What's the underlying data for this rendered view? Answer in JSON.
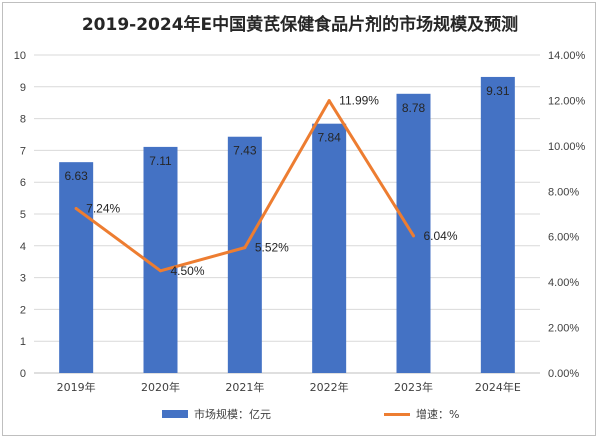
{
  "title": "2019-2024年E中国黄芪保健食品片剂的市场规模及预测",
  "colors": {
    "bar": "#4472C4",
    "line": "#ED7D31",
    "grid": "#d9d9d9",
    "axis": "#bfbfbf"
  },
  "legend": {
    "bar_label": "市场规模：亿元",
    "line_label": "增速：%"
  },
  "chart_data": {
    "type": "bar",
    "categories": [
      "2019年",
      "2020年",
      "2021年",
      "2022年",
      "2023年",
      "2024年E"
    ],
    "series": [
      {
        "name": "市场规模：亿元",
        "type": "bar",
        "axis": "left",
        "values": [
          6.63,
          7.11,
          7.43,
          7.84,
          8.78,
          9.31
        ],
        "labels": [
          "6.63",
          "7.11",
          "7.43",
          "7.84",
          "8.78",
          "9.31"
        ]
      },
      {
        "name": "增速：%",
        "type": "line",
        "axis": "right",
        "values": [
          7.24,
          4.5,
          5.52,
          11.99,
          6.04,
          null
        ],
        "labels": [
          "7.24%",
          "4.50%",
          "5.52%",
          "11.99%",
          "6.04%",
          null
        ]
      }
    ],
    "y_left": {
      "min": 0,
      "max": 10,
      "ticks": [
        "0",
        "1",
        "2",
        "3",
        "4",
        "5",
        "6",
        "7",
        "8",
        "9",
        "10"
      ]
    },
    "y_right": {
      "min": 0,
      "max": 14,
      "ticks": [
        "0.00%",
        "2.00%",
        "4.00%",
        "6.00%",
        "8.00%",
        "10.00%",
        "12.00%",
        "14.00%"
      ]
    },
    "grid": true,
    "legend_position": "bottom"
  }
}
